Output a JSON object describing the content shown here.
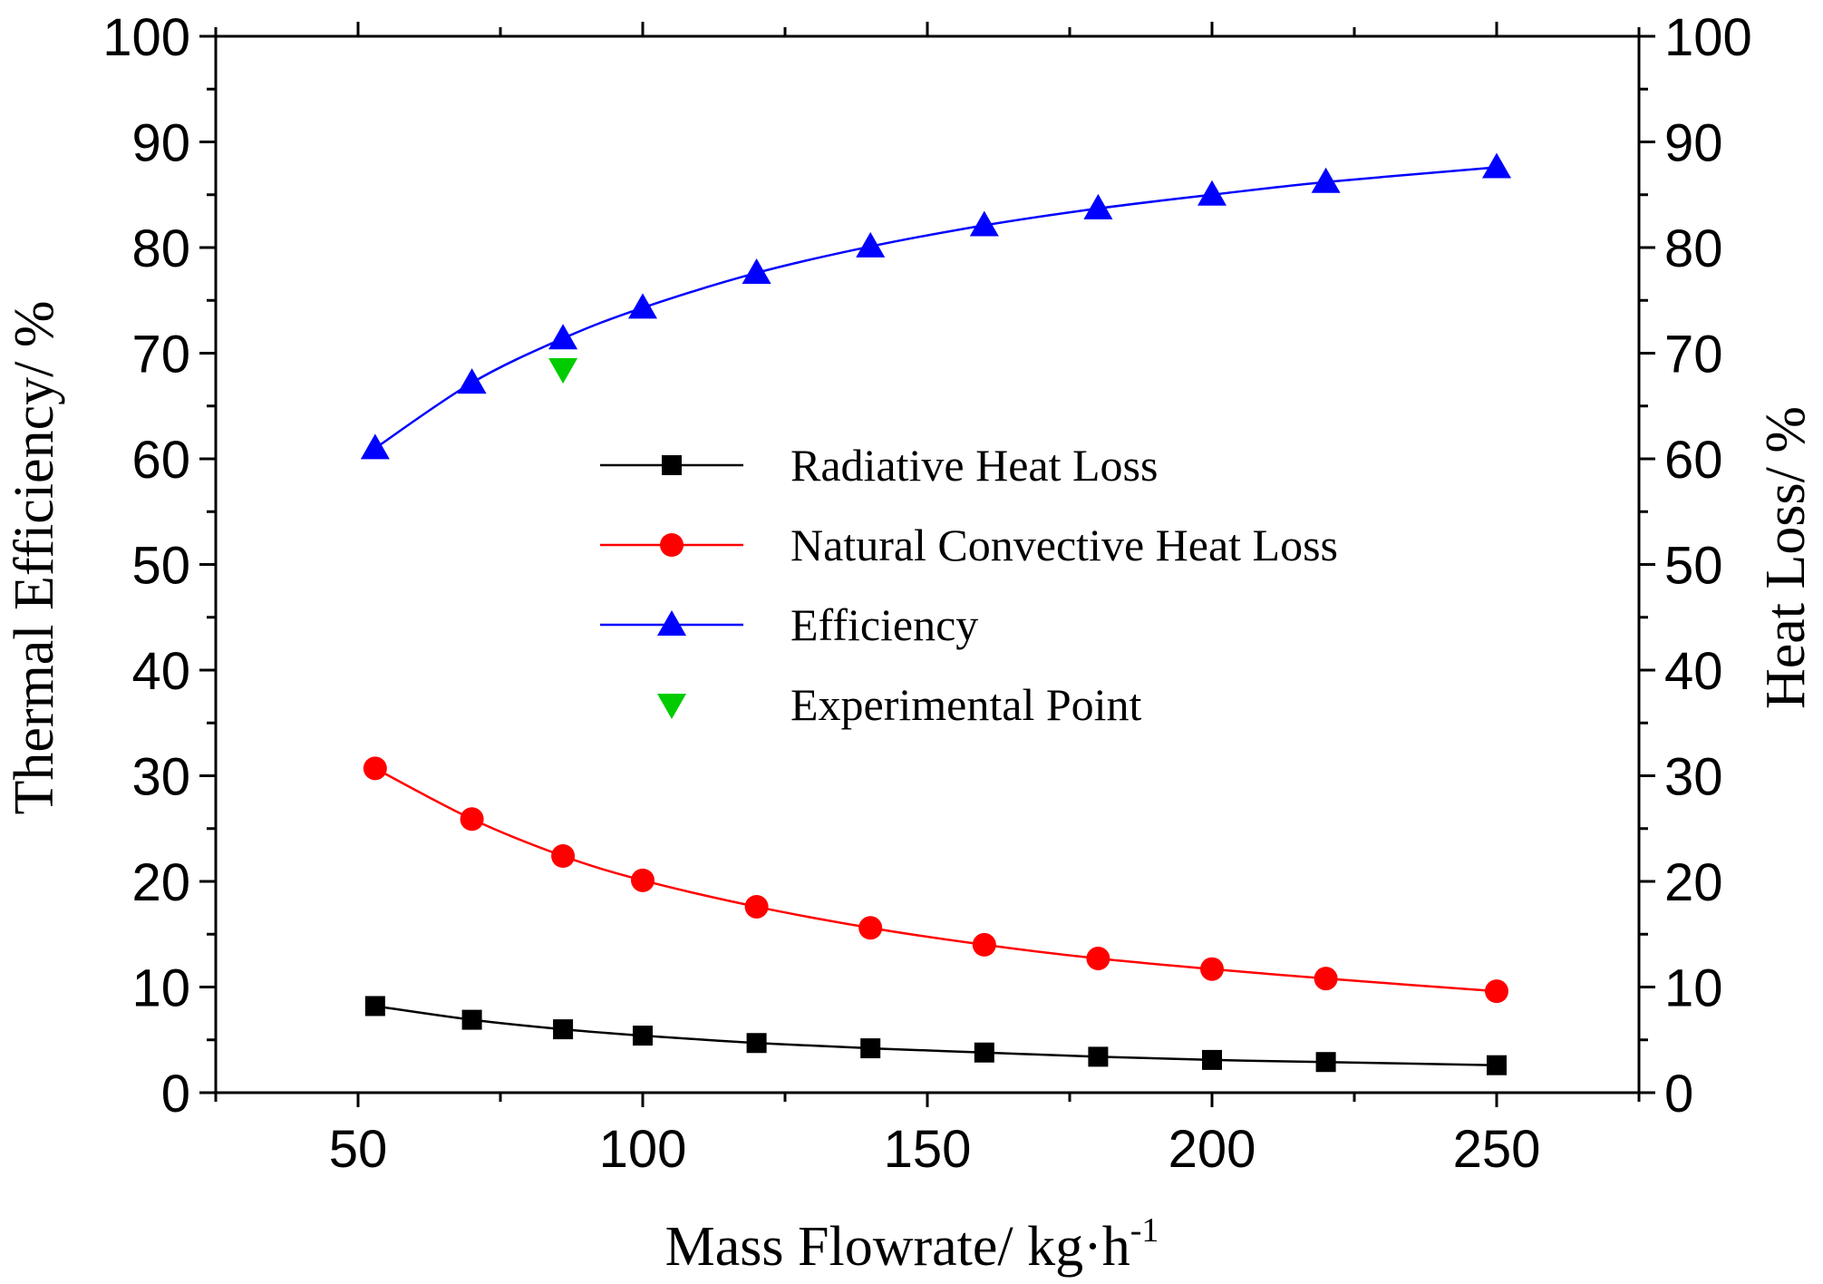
{
  "chart_data": {
    "type": "line",
    "xlabel": "Mass Flowrate/ kg·h",
    "xlabel_sup": "-1",
    "ylabel_left": "Thermal Efficiency/ %",
    "ylabel_right": "Heat Loss/ %",
    "xlim": [
      25,
      275
    ],
    "ylim": [
      0,
      100
    ],
    "x_ticks": [
      50,
      100,
      150,
      200,
      250
    ],
    "x_minor_ticks": [
      25,
      75,
      125,
      175,
      225,
      275
    ],
    "y_ticks": [
      0,
      10,
      20,
      30,
      40,
      50,
      60,
      70,
      80,
      90,
      100
    ],
    "grid": false,
    "legend_position": "center",
    "series": [
      {
        "name": "Radiative Heat Loss",
        "axis": "right",
        "marker": "square",
        "color": "#000000",
        "line_color": "#000000",
        "x": [
          53,
          70,
          86,
          100,
          120,
          140,
          160,
          180,
          200,
          220,
          250
        ],
        "values": [
          8.2,
          6.9,
          6.0,
          5.4,
          4.7,
          4.2,
          3.8,
          3.4,
          3.1,
          2.9,
          2.6
        ]
      },
      {
        "name": "Natural Convective Heat Loss",
        "axis": "right",
        "marker": "circle",
        "color": "#ff0000",
        "line_color": "#ff0000",
        "x": [
          53,
          70,
          86,
          100,
          120,
          140,
          160,
          180,
          200,
          220,
          250
        ],
        "values": [
          30.7,
          25.9,
          22.4,
          20.1,
          17.6,
          15.6,
          14.0,
          12.7,
          11.7,
          10.8,
          9.6
        ]
      },
      {
        "name": "Efficiency",
        "axis": "left",
        "marker": "triangle-up",
        "color": "#0000ff",
        "line_color": "#0000ff",
        "x": [
          53,
          70,
          86,
          100,
          120,
          140,
          160,
          180,
          200,
          220,
          250
        ],
        "values": [
          61.0,
          67.2,
          71.4,
          74.3,
          77.6,
          80.1,
          82.1,
          83.7,
          85.0,
          86.2,
          87.6
        ]
      },
      {
        "name": "Experimental Point",
        "axis": "left",
        "marker": "triangle-down",
        "color": "#00cc00",
        "line_color": null,
        "x": [
          86
        ],
        "values": [
          68.5
        ]
      }
    ]
  }
}
